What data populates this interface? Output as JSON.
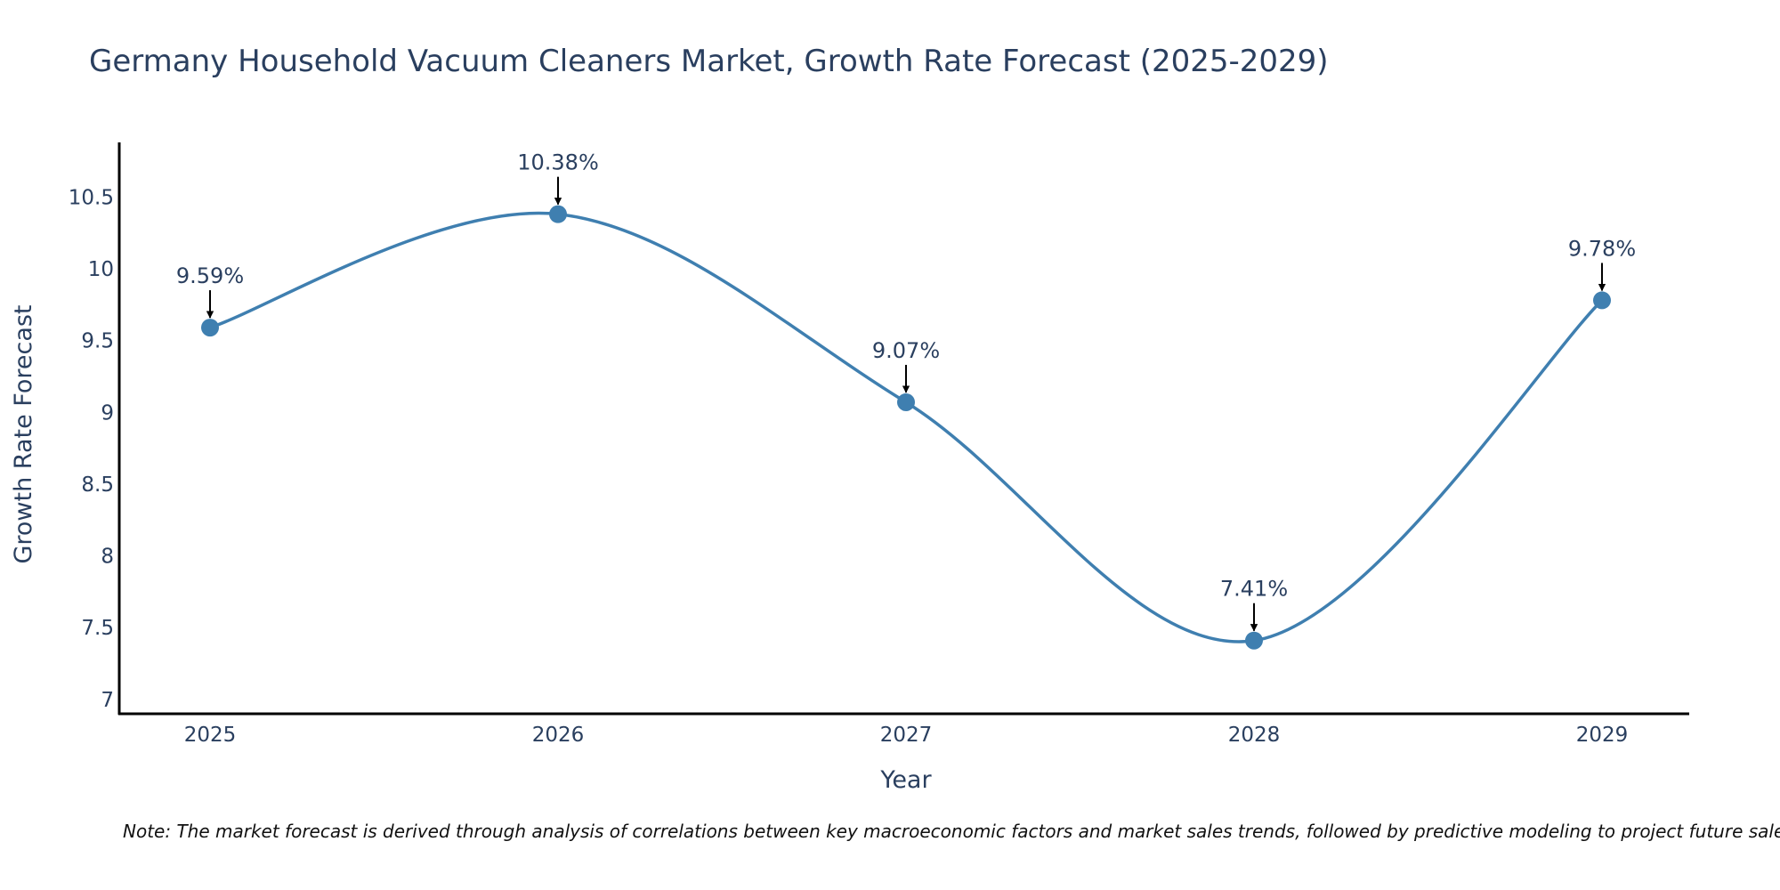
{
  "chart_data": {
    "type": "line",
    "title": "Germany Household Vacuum Cleaners Market, Growth Rate Forecast (2025-2029)",
    "xlabel": "Year",
    "ylabel": "Growth Rate Forecast",
    "categories": [
      "2025",
      "2026",
      "2027",
      "2028",
      "2029"
    ],
    "values": [
      9.59,
      10.38,
      9.07,
      7.41,
      9.78
    ],
    "data_labels": [
      "9.59%",
      "10.38%",
      "9.07%",
      "7.41%",
      "9.78%"
    ],
    "y_ticks": [
      7,
      7.5,
      8,
      8.5,
      9,
      9.5,
      10,
      10.5
    ],
    "y_tick_labels": [
      "7",
      "7.5",
      "8",
      "8.5",
      "9",
      "9.5",
      "10",
      "10.5"
    ],
    "ylim": [
      6.9,
      10.88
    ],
    "line_shape": "spline",
    "grid": false,
    "legend": "none"
  },
  "note": "Note: The market forecast is derived through analysis of correlations between key macroeconomic factors and market sales trends, followed by predictive modeling to project future sales.",
  "colors": {
    "line": "#3f7fb0",
    "marker": "#3f7fb0",
    "axis": "#000000",
    "text": "#2a3f5f",
    "arrow": "#000000"
  }
}
